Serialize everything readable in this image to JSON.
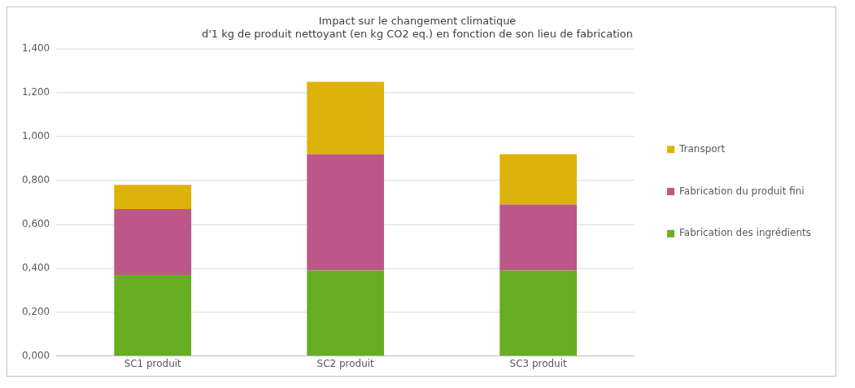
{
  "chart_data": {
    "type": "bar",
    "stacked": true,
    "title": "Impact sur le changement climatique\nd'1 kg de produit nettoyant (en kg CO2 eq.) en fonction de son lieu de fabrication",
    "categories": [
      "SC1 produit",
      "SC2 produit",
      "SC3 produit"
    ],
    "series": [
      {
        "name": "Fabrication des ingrédients",
        "color": "#66ad22",
        "values": [
          0.37,
          0.39,
          0.39
        ]
      },
      {
        "name": "Fabrication du produit fini",
        "color": "#bd5787",
        "values": [
          0.3,
          0.53,
          0.3
        ]
      },
      {
        "name": "Transport",
        "color": "#ddb20a",
        "values": [
          0.11,
          0.33,
          0.23
        ]
      }
    ],
    "ylim": [
      0,
      1.4
    ],
    "yticks": [
      {
        "value": 0,
        "label": "0,000"
      },
      {
        "value": 0.2,
        "label": "0,200"
      },
      {
        "value": 0.4,
        "label": "0,400"
      },
      {
        "value": 0.6,
        "label": "0,600"
      },
      {
        "value": 0.8,
        "label": "0,800"
      },
      {
        "value": 1.0,
        "label": "1,000"
      },
      {
        "value": 1.2,
        "label": "1,200"
      },
      {
        "value": 1.4,
        "label": "1,400"
      }
    ],
    "grid": "y",
    "legend": "right"
  }
}
